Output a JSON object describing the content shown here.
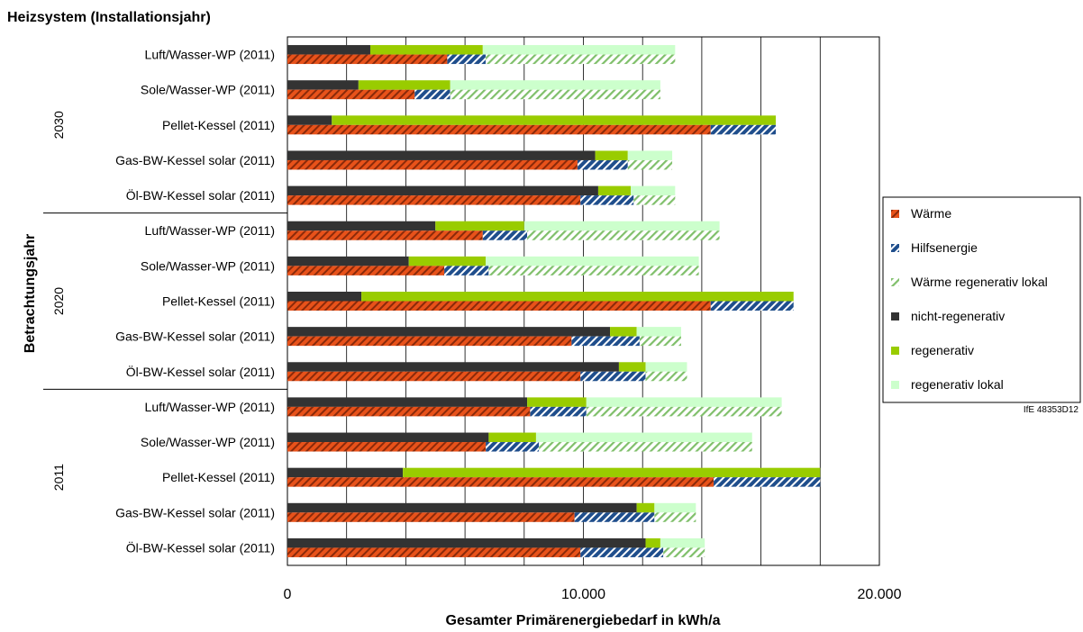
{
  "chart_data": {
    "type": "bar",
    "orientation": "horizontal",
    "stacked": true,
    "title": "Heizsystem (Installationsjahr)",
    "xlabel": "Gesamter Primärenergiebedarf in kWh/a",
    "ylabel": "Betrachtungsjahr",
    "xlim": [
      0,
      20000
    ],
    "x_ticks": [
      "0",
      "10.000",
      "20.000"
    ],
    "x_tick_values": [
      0,
      10000,
      20000
    ],
    "gridlines": "vertical every 2000",
    "watermark": "IfE 48353D12",
    "legend_position": "right",
    "colors": {
      "waerme": "#e8521a",
      "hilfsenergie": "#1f4e8c",
      "waerme_regenerativ_lokal": "#7fbf6a",
      "nicht_regenerativ": "#333333",
      "regenerativ": "#99cc00",
      "regenerativ_lokal": "#ccffcc"
    },
    "legend": [
      {
        "key": "waerme",
        "label": "Wärme",
        "pattern": "hatch"
      },
      {
        "key": "hilfsenergie",
        "label": "Hilfsenergie",
        "pattern": "hatch"
      },
      {
        "key": "waerme_regenerativ_lokal",
        "label": "Wärme regenerativ lokal",
        "pattern": "hatch"
      },
      {
        "key": "nicht_regenerativ",
        "label": "nicht-regenerativ",
        "pattern": "solid"
      },
      {
        "key": "regenerativ",
        "label": "regenerativ",
        "pattern": "solid"
      },
      {
        "key": "regenerativ_lokal",
        "label": "regenerativ lokal",
        "pattern": "solid"
      }
    ],
    "groups": [
      {
        "year": "2030",
        "categories": [
          {
            "label": "Luft/Wasser-WP (2011)",
            "bottom": [
              5400,
              1300,
              6400
            ],
            "top": [
              2800,
              3800,
              6500
            ]
          },
          {
            "label": "Sole/Wasser-WP (2011)",
            "bottom": [
              4300,
              1200,
              7100
            ],
            "top": [
              2400,
              3100,
              7100
            ]
          },
          {
            "label": "Pellet-Kessel (2011)",
            "bottom": [
              14300,
              2200,
              0
            ],
            "top": [
              1500,
              15000,
              0
            ]
          },
          {
            "label": "Gas-BW-Kessel solar (2011)",
            "bottom": [
              9800,
              1700,
              1500
            ],
            "top": [
              10400,
              1100,
              1500
            ]
          },
          {
            "label": "Öl-BW-Kessel solar (2011)",
            "bottom": [
              9900,
              1800,
              1400
            ],
            "top": [
              10500,
              1100,
              1500
            ]
          }
        ]
      },
      {
        "year": "2020",
        "categories": [
          {
            "label": "Luft/Wasser-WP (2011)",
            "bottom": [
              6600,
              1500,
              6500
            ],
            "top": [
              5000,
              3000,
              6600
            ]
          },
          {
            "label": "Sole/Wasser-WP (2011)",
            "bottom": [
              5300,
              1500,
              7100
            ],
            "top": [
              4100,
              2600,
              7200
            ]
          },
          {
            "label": "Pellet-Kessel (2011)",
            "bottom": [
              14300,
              2800,
              0
            ],
            "top": [
              2500,
              14600,
              0
            ]
          },
          {
            "label": "Gas-BW-Kessel solar (2011)",
            "bottom": [
              9600,
              2300,
              1400
            ],
            "top": [
              10900,
              900,
              1500
            ]
          },
          {
            "label": "Öl-BW-Kessel solar (2011)",
            "bottom": [
              9900,
              2200,
              1400
            ],
            "top": [
              11200,
              900,
              1400
            ]
          }
        ]
      },
      {
        "year": "2011",
        "categories": [
          {
            "label": "Luft/Wasser-WP (2011)",
            "bottom": [
              8200,
              1900,
              6600
            ],
            "top": [
              8100,
              2000,
              6600
            ]
          },
          {
            "label": "Sole/Wasser-WP (2011)",
            "bottom": [
              6700,
              1800,
              7200
            ],
            "top": [
              6800,
              1600,
              7300
            ]
          },
          {
            "label": "Pellet-Kessel (2011)",
            "bottom": [
              14400,
              3600,
              0
            ],
            "top": [
              3900,
              14100,
              0
            ]
          },
          {
            "label": "Gas-BW-Kessel solar (2011)",
            "bottom": [
              9700,
              2700,
              1400
            ],
            "top": [
              11800,
              600,
              1400
            ]
          },
          {
            "label": "Öl-BW-Kessel solar (2011)",
            "bottom": [
              9900,
              2800,
              1400
            ],
            "top": [
              12100,
              500,
              1500
            ]
          }
        ]
      }
    ]
  }
}
